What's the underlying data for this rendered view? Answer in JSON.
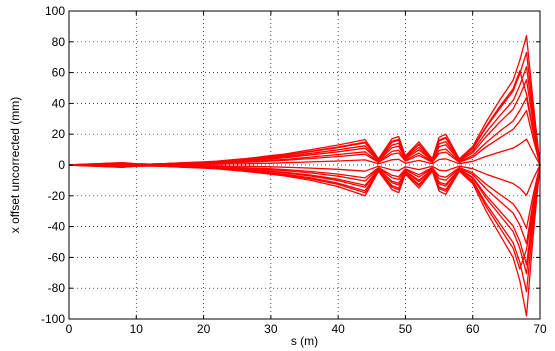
{
  "chart_data": {
    "type": "line",
    "title": "",
    "xlabel": "s (m)",
    "ylabel": "x offset uncorrected (mm)",
    "xlim": [
      0,
      70
    ],
    "ylim": [
      -100,
      100
    ],
    "xticks": [
      0,
      10,
      20,
      30,
      40,
      50,
      60,
      70
    ],
    "yticks": [
      -100,
      -80,
      -60,
      -40,
      -20,
      0,
      20,
      40,
      60,
      80,
      100
    ],
    "grid": true,
    "legend": "none",
    "line_color": "#ff0000",
    "x": [
      0,
      2,
      4,
      6,
      8,
      10,
      12,
      14,
      16,
      18,
      20,
      22,
      24,
      26,
      28,
      30,
      32,
      36,
      40,
      44,
      46,
      48,
      49,
      50,
      52,
      54,
      55,
      56,
      58,
      60,
      62,
      64,
      66,
      67,
      68,
      69,
      70
    ],
    "series": [
      {
        "values": [
          0,
          0.5,
          0.8,
          1.2,
          1.5,
          0.8,
          0.6,
          0.9,
          1.3,
          1.7,
          2.0,
          2.5,
          3.3,
          4.0,
          5.0,
          6.2,
          7.0,
          10.0,
          13.0,
          16.5,
          4.0,
          17.0,
          18.5,
          6.0,
          15.0,
          4.0,
          18.0,
          20.0,
          4.0,
          12.0,
          28.0,
          42.0,
          55.0,
          68.0,
          84.0,
          40.0,
          0
        ]
      },
      {
        "values": [
          0,
          -0.5,
          -0.8,
          -1.2,
          -1.5,
          -0.8,
          -0.6,
          -0.9,
          -1.3,
          -1.7,
          -2.0,
          -2.5,
          -3.3,
          -4.0,
          -5.0,
          -6.0,
          -7.0,
          -10.0,
          -14.0,
          -20.0,
          -4.0,
          -16.0,
          -18.0,
          -6.0,
          -15.0,
          -4.0,
          -17.0,
          -19.0,
          -4.0,
          -12.0,
          -30.0,
          -45.0,
          -60.0,
          -75.0,
          -98.0,
          -45.0,
          0
        ]
      },
      {
        "values": [
          0,
          0.4,
          0.7,
          1.0,
          1.3,
          0.7,
          0.5,
          0.8,
          1.1,
          1.5,
          1.7,
          2.2,
          2.9,
          3.5,
          4.4,
          5.3,
          6.1,
          8.7,
          11.3,
          14.4,
          3.5,
          14.8,
          16.1,
          5.2,
          13.1,
          3.5,
          15.7,
          17.4,
          3.5,
          10.5,
          24.4,
          36.5,
          47.9,
          59.2,
          73.1,
          34.8,
          0
        ]
      },
      {
        "values": [
          0,
          -0.4,
          -0.7,
          -1.0,
          -1.3,
          -0.7,
          -0.5,
          -0.8,
          -1.1,
          -1.4,
          -1.7,
          -2.1,
          -2.8,
          -3.4,
          -4.2,
          -5.1,
          -5.9,
          -8.4,
          -11.8,
          -16.8,
          -3.4,
          -13.4,
          -15.1,
          -5.0,
          -12.6,
          -3.4,
          -14.3,
          -16.0,
          -3.4,
          -10.1,
          -25.2,
          -37.8,
          -50.4,
          -63.0,
          -82.3,
          -37.8,
          0
        ]
      },
      {
        "values": [
          0,
          0.3,
          0.5,
          0.7,
          0.9,
          0.5,
          0.4,
          0.6,
          0.8,
          1.1,
          1.3,
          1.6,
          2.1,
          2.6,
          3.3,
          4.0,
          4.6,
          6.6,
          8.6,
          10.9,
          2.6,
          11.2,
          12.2,
          4.0,
          9.9,
          2.6,
          11.9,
          13.2,
          2.6,
          7.9,
          18.5,
          27.7,
          36.3,
          44.9,
          55.4,
          26.4,
          0
        ]
      },
      {
        "values": [
          0,
          -0.3,
          -0.5,
          -0.8,
          -1.0,
          -0.5,
          -0.4,
          -0.6,
          -0.9,
          -1.1,
          -1.3,
          -1.7,
          -2.2,
          -2.7,
          -3.3,
          -4.0,
          -4.6,
          -6.6,
          -9.2,
          -13.2,
          -2.6,
          -10.6,
          -11.9,
          -4.0,
          -9.9,
          -2.6,
          -11.2,
          -12.5,
          -2.6,
          -7.9,
          -19.8,
          -29.7,
          -39.6,
          -49.5,
          -64.7,
          -29.7,
          0
        ]
      },
      {
        "values": [
          0,
          0.2,
          0.3,
          0.5,
          0.6,
          0.3,
          0.2,
          0.4,
          0.5,
          0.7,
          0.8,
          1.0,
          1.4,
          1.7,
          2.1,
          2.6,
          3.0,
          4.2,
          5.5,
          7.0,
          1.7,
          7.1,
          7.8,
          2.5,
          6.3,
          1.7,
          7.6,
          8.4,
          1.7,
          5.0,
          11.8,
          17.6,
          23.1,
          28.6,
          35.3,
          16.8,
          0
        ]
      },
      {
        "values": [
          0,
          -0.2,
          -0.3,
          -0.5,
          -0.6,
          -0.3,
          -0.2,
          -0.4,
          -0.6,
          -0.7,
          -0.8,
          -1.1,
          -1.4,
          -1.7,
          -2.1,
          -2.5,
          -2.9,
          -4.2,
          -5.9,
          -8.4,
          -1.7,
          -6.7,
          -7.6,
          -2.5,
          -6.3,
          -1.7,
          -7.1,
          -8.0,
          -1.7,
          -5.0,
          -12.6,
          -18.9,
          -25.2,
          -31.5,
          -41.2,
          -18.9,
          0
        ]
      },
      {
        "values": [
          0,
          0.1,
          0.2,
          0.2,
          0.3,
          0.2,
          0.1,
          0.2,
          0.3,
          0.3,
          0.4,
          0.5,
          0.7,
          0.8,
          1.0,
          1.2,
          1.4,
          2.0,
          2.6,
          3.3,
          0.8,
          3.4,
          3.7,
          1.2,
          3.0,
          0.8,
          3.6,
          4.0,
          0.8,
          2.4,
          5.6,
          8.4,
          11.0,
          13.6,
          16.8,
          8.0,
          0
        ]
      },
      {
        "values": [
          0,
          -0.1,
          -0.2,
          -0.2,
          -0.3,
          -0.2,
          -0.1,
          -0.2,
          -0.3,
          -0.4,
          -0.4,
          -0.5,
          -0.7,
          -0.8,
          -1.0,
          -1.2,
          -1.4,
          -2.0,
          -2.8,
          -4.0,
          -0.8,
          -3.2,
          -3.6,
          -1.2,
          -3.0,
          -0.8,
          -3.4,
          -3.8,
          -0.8,
          -2.4,
          -6.0,
          -9.0,
          -12.0,
          -15.0,
          -19.6,
          -9.0,
          0
        ]
      },
      {
        "values": [
          0,
          0.3,
          0.6,
          0.9,
          1.1,
          0.6,
          0.5,
          0.7,
          1.0,
          1.3,
          1.5,
          1.9,
          2.5,
          3.0,
          3.8,
          4.6,
          5.3,
          7.6,
          9.9,
          12.5,
          3.0,
          12.9,
          14.1,
          4.6,
          11.4,
          3.0,
          13.7,
          15.2,
          3.0,
          9.1,
          21.3,
          31.9,
          41.8,
          51.7,
          63.8,
          30.4,
          0
        ]
      },
      {
        "values": [
          0,
          -0.3,
          -0.5,
          -0.9,
          -1.1,
          -0.5,
          -0.4,
          -0.7,
          -1.0,
          -1.2,
          -1.4,
          -1.8,
          -2.4,
          -2.9,
          -3.6,
          -4.3,
          -5.0,
          -7.2,
          -10.1,
          -14.4,
          -2.9,
          -11.5,
          -13.0,
          -4.3,
          -10.8,
          -2.9,
          -12.2,
          -13.7,
          -2.9,
          -8.6,
          -21.6,
          -32.4,
          -43.2,
          -54.0,
          -70.6,
          -32.4,
          0
        ]
      },
      {
        "values": [
          0,
          0.2,
          0.4,
          0.6,
          0.8,
          0.4,
          0.3,
          0.5,
          0.7,
          0.9,
          1.0,
          1.3,
          1.7,
          2.1,
          2.6,
          3.2,
          3.6,
          5.2,
          6.8,
          8.6,
          2.1,
          8.8,
          9.6,
          3.1,
          7.8,
          2.1,
          9.4,
          10.4,
          2.1,
          6.2,
          14.6,
          21.8,
          28.6,
          35.4,
          43.7,
          20.8,
          0
        ]
      },
      {
        "values": [
          0,
          -0.2,
          -0.4,
          -0.6,
          -0.8,
          -0.4,
          -0.3,
          -0.5,
          -0.7,
          -0.9,
          -1.0,
          -1.3,
          -1.7,
          -2.1,
          -2.6,
          -3.1,
          -3.6,
          -5.2,
          -7.3,
          -10.4,
          -2.1,
          -8.3,
          -9.4,
          -3.1,
          -7.8,
          -2.1,
          -8.8,
          -9.9,
          -2.1,
          -6.2,
          -15.6,
          -23.4,
          -31.2,
          -39.0,
          -51.0,
          -23.4,
          0
        ]
      },
      {
        "values": [
          0,
          0.45,
          0.72,
          1.1,
          1.35,
          0.72,
          0.54,
          0.81,
          1.2,
          1.5,
          1.8,
          2.3,
          3.0,
          3.6,
          4.5,
          5.6,
          6.3,
          9.0,
          11.7,
          14.9,
          3.6,
          15.3,
          16.7,
          5.4,
          13.5,
          3.6,
          16.2,
          18.0,
          3.6,
          10.8,
          25.2,
          37.8,
          49.5,
          61.2,
          46.0,
          22.0,
          0
        ]
      },
      {
        "values": [
          0,
          -0.45,
          -0.72,
          -1.1,
          -1.35,
          -0.72,
          -0.54,
          -0.81,
          -1.2,
          -1.5,
          -1.8,
          -2.3,
          -3.0,
          -3.6,
          -4.5,
          -5.4,
          -6.3,
          -9.0,
          -12.6,
          -18.0,
          -3.6,
          -14.4,
          -16.2,
          -5.4,
          -13.5,
          -3.6,
          -15.3,
          -17.1,
          -3.6,
          -10.8,
          -27.0,
          -40.5,
          -54.0,
          -67.5,
          -55.0,
          -27.0,
          0
        ]
      }
    ]
  }
}
